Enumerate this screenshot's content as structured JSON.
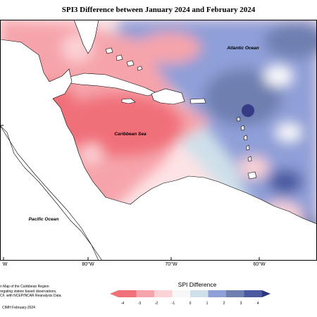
{
  "title": "SPI3 Difference between January 2024 and February 2024",
  "map": {
    "labels": [
      "Atlantic Ocean",
      "Caribbean Sea",
      "Pacific Ocean"
    ],
    "lon_ticks": [
      "W",
      "80°W",
      "70°W",
      "60°W"
    ]
  },
  "notes": [
    "n Map of the Caribbean Region",
    "regating station based observations,",
    "CF, with NCEP/NCAR Reanalysis Data."
  ],
  "credit": "CIMH February-2024",
  "legend": {
    "title": "SPI Difference",
    "ticks": [
      "-4",
      "-3",
      "-2",
      "-1",
      "0",
      "1",
      "2",
      "3",
      "4"
    ],
    "colors": [
      "#f0707a",
      "#f6a4ab",
      "#fbd2d6",
      "#ffffff",
      "#cfe0ea",
      "#8f9fd8",
      "#6e7fb0",
      "#4a5aa0",
      "#2f3480"
    ]
  }
}
